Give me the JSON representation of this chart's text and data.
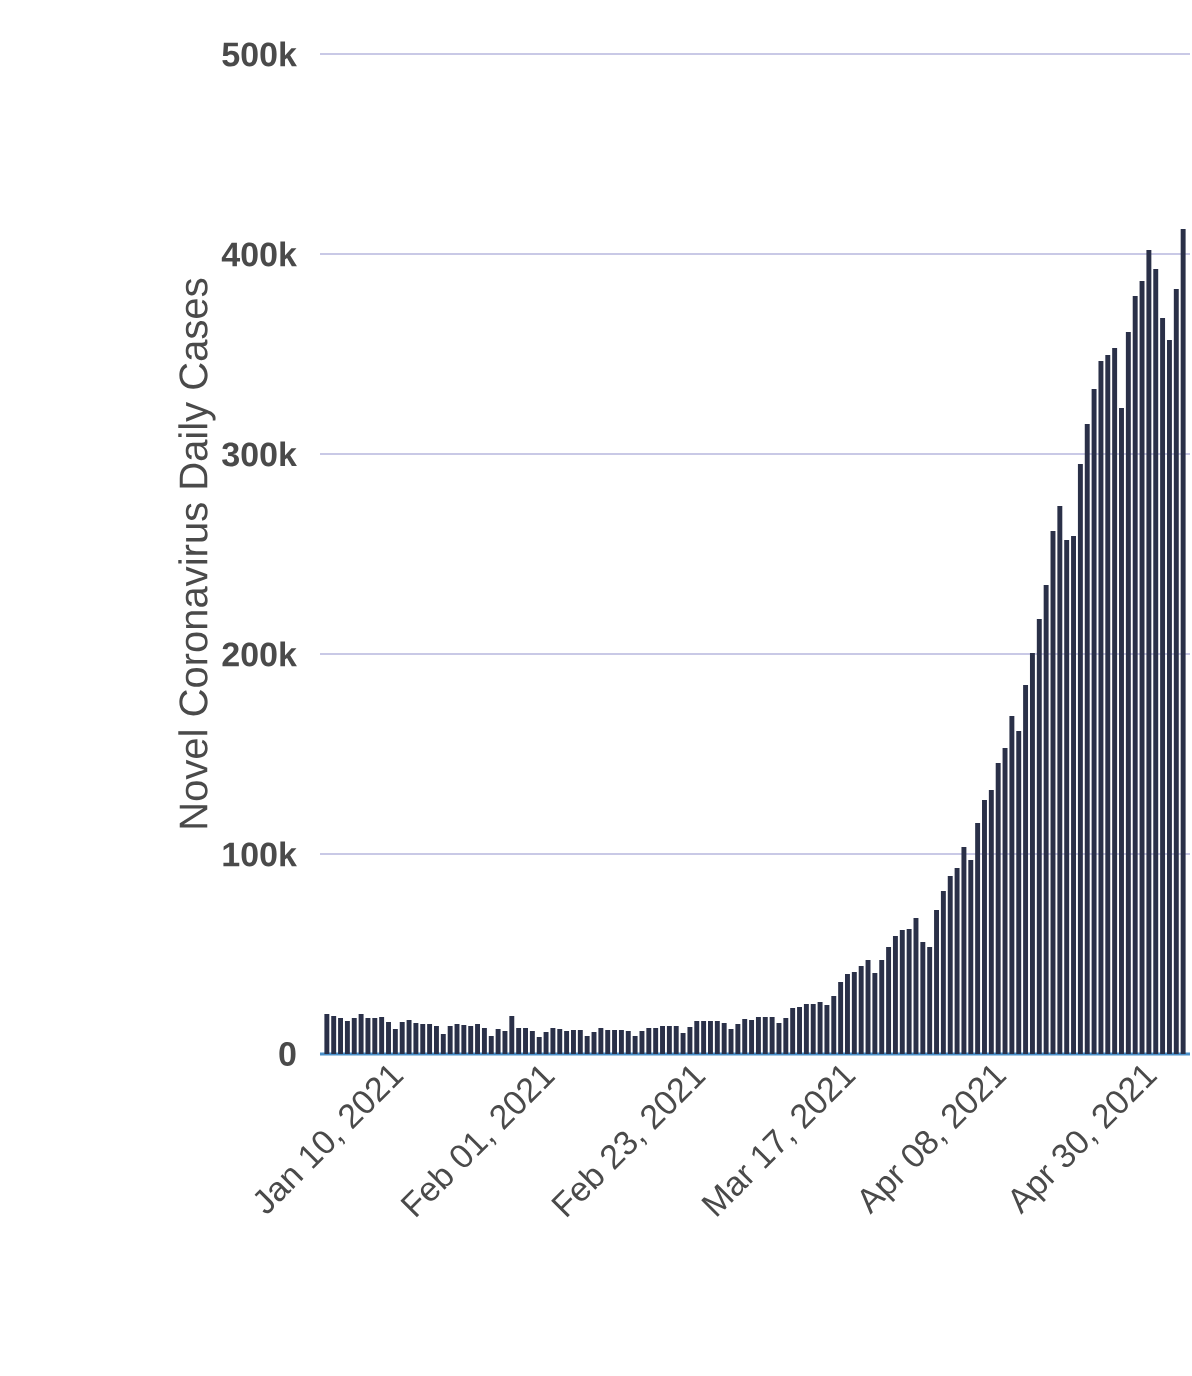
{
  "chart_data": {
    "type": "bar",
    "ylabel": "Novel Coronavirus Daily Cases",
    "x": [
      "2021-01-01",
      "2021-01-02",
      "2021-01-03",
      "2021-01-04",
      "2021-01-05",
      "2021-01-06",
      "2021-01-07",
      "2021-01-08",
      "2021-01-09",
      "2021-01-10",
      "2021-01-11",
      "2021-01-12",
      "2021-01-13",
      "2021-01-14",
      "2021-01-15",
      "2021-01-16",
      "2021-01-17",
      "2021-01-18",
      "2021-01-19",
      "2021-01-20",
      "2021-01-21",
      "2021-01-22",
      "2021-01-23",
      "2021-01-24",
      "2021-01-25",
      "2021-01-26",
      "2021-01-27",
      "2021-01-28",
      "2021-01-29",
      "2021-01-30",
      "2021-01-31",
      "2021-02-01",
      "2021-02-02",
      "2021-02-03",
      "2021-02-04",
      "2021-02-05",
      "2021-02-06",
      "2021-02-07",
      "2021-02-08",
      "2021-02-09",
      "2021-02-10",
      "2021-02-11",
      "2021-02-12",
      "2021-02-13",
      "2021-02-14",
      "2021-02-15",
      "2021-02-16",
      "2021-02-17",
      "2021-02-18",
      "2021-02-19",
      "2021-02-20",
      "2021-02-21",
      "2021-02-22",
      "2021-02-23",
      "2021-02-24",
      "2021-02-25",
      "2021-02-26",
      "2021-02-27",
      "2021-02-28",
      "2021-03-01",
      "2021-03-02",
      "2021-03-03",
      "2021-03-04",
      "2021-03-05",
      "2021-03-06",
      "2021-03-07",
      "2021-03-08",
      "2021-03-09",
      "2021-03-10",
      "2021-03-11",
      "2021-03-12",
      "2021-03-13",
      "2021-03-14",
      "2021-03-15",
      "2021-03-16",
      "2021-03-17",
      "2021-03-18",
      "2021-03-19",
      "2021-03-20",
      "2021-03-21",
      "2021-03-22",
      "2021-03-23",
      "2021-03-24",
      "2021-03-25",
      "2021-03-26",
      "2021-03-27",
      "2021-03-28",
      "2021-03-29",
      "2021-03-30",
      "2021-03-31",
      "2021-04-01",
      "2021-04-02",
      "2021-04-03",
      "2021-04-04",
      "2021-04-05",
      "2021-04-06",
      "2021-04-07",
      "2021-04-08",
      "2021-04-09",
      "2021-04-10",
      "2021-04-11",
      "2021-04-12",
      "2021-04-13",
      "2021-04-14",
      "2021-04-15",
      "2021-04-16",
      "2021-04-17",
      "2021-04-18",
      "2021-04-19",
      "2021-04-20",
      "2021-04-21",
      "2021-04-22",
      "2021-04-23",
      "2021-04-24",
      "2021-04-25",
      "2021-04-26",
      "2021-04-27",
      "2021-04-28",
      "2021-04-29",
      "2021-04-30",
      "2021-05-01",
      "2021-05-02",
      "2021-05-03",
      "2021-05-04",
      "2021-05-05",
      "2021-05-06"
    ],
    "values": [
      20000,
      19000,
      18000,
      16500,
      18000,
      20000,
      18000,
      18000,
      18500,
      16000,
      12500,
      16000,
      17000,
      15500,
      15000,
      15000,
      14000,
      10000,
      14000,
      15000,
      14500,
      14000,
      15000,
      13000,
      9000,
      12500,
      11500,
      19000,
      13000,
      13000,
      11500,
      8500,
      11000,
      13000,
      12500,
      11500,
      12000,
      12000,
      9000,
      11000,
      13000,
      12000,
      12000,
      12000,
      11500,
      9000,
      11500,
      13000,
      13000,
      14000,
      14000,
      14000,
      10500,
      13500,
      16500,
      16500,
      16500,
      16500,
      15500,
      12500,
      15000,
      17500,
      17000,
      18500,
      18500,
      18500,
      15500,
      18000,
      23000,
      23500,
      25000,
      25000,
      26000,
      24500,
      29000,
      36000,
      40000,
      41000,
      44000,
      47000,
      40500,
      47000,
      53500,
      59000,
      62000,
      62500,
      68000,
      56000,
      53500,
      72000,
      81500,
      89000,
      93000,
      103500,
      97000,
      115500,
      127000,
      132000,
      145500,
      153000,
      169000,
      161500,
      184500,
      200500,
      217500,
      234500,
      261500,
      274000,
      257000,
      259000,
      295000,
      315000,
      332500,
      346500,
      349500,
      353000,
      323000,
      361000,
      379000,
      386500,
      402000,
      392500,
      368000,
      357000,
      382500,
      412500
    ],
    "color": "#2a3048",
    "xlim": [
      "2020-12-31",
      "2021-05-07"
    ],
    "xticks": [
      {
        "value": "2021-01-10",
        "label": "Jan 10, 2021"
      },
      {
        "value": "2021-02-01",
        "label": "Feb 01, 2021"
      },
      {
        "value": "2021-02-23",
        "label": "Feb 23, 2021"
      },
      {
        "value": "2021-03-17",
        "label": "Mar 17, 2021"
      },
      {
        "value": "2021-04-08",
        "label": "Apr 08, 2021"
      },
      {
        "value": "2021-04-30",
        "label": "Apr 30, 2021"
      }
    ],
    "ylim": [
      0,
      500000
    ],
    "yticks": [
      0,
      {
        "value": 100000,
        "label": "100k"
      },
      {
        "value": 200000,
        "label": "200k"
      },
      {
        "value": 300000,
        "label": "300k"
      },
      {
        "value": 400000,
        "label": "400k"
      },
      {
        "value": 500000,
        "label": "500k"
      }
    ],
    "grid": "y"
  }
}
